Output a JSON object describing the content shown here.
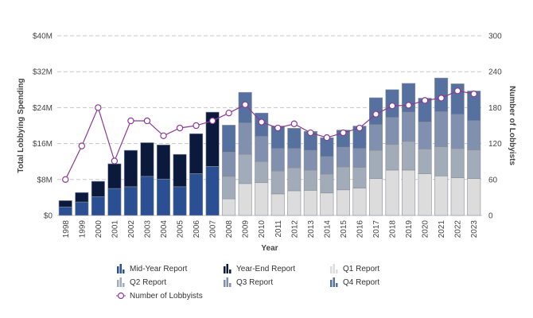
{
  "chart_data": {
    "type": "bar",
    "stacked": true,
    "categories": [
      "1998",
      "1999",
      "2000",
      "2001",
      "2002",
      "2003",
      "2004",
      "2005",
      "2006",
      "2007",
      "2008",
      "2009",
      "2010",
      "2011",
      "2012",
      "2013",
      "2014",
      "2015",
      "2016",
      "2017",
      "2018",
      "2019",
      "2020",
      "2021",
      "2022",
      "2023"
    ],
    "series": [
      {
        "name": "Mid-Year Report",
        "color": "#2b4f93",
        "axis": "left",
        "values": [
          1.9,
          3.0,
          4.2,
          6.0,
          6.4,
          8.7,
          8.1,
          6.4,
          9.3,
          10.9,
          null,
          null,
          null,
          null,
          null,
          null,
          null,
          null,
          null,
          null,
          null,
          null,
          null,
          null,
          null,
          null
        ]
      },
      {
        "name": "Year-End Report",
        "color": "#0b1a3c",
        "axis": "left",
        "values": [
          1.4,
          2.1,
          3.4,
          5.5,
          8.1,
          7.5,
          7.6,
          7.2,
          8.9,
          12.1,
          null,
          null,
          null,
          null,
          null,
          null,
          null,
          null,
          null,
          null,
          null,
          null,
          null,
          null,
          null,
          null
        ]
      },
      {
        "name": "Q1 Report",
        "color": "#dcdcdc",
        "axis": "left",
        "values": [
          null,
          null,
          null,
          null,
          null,
          null,
          null,
          null,
          null,
          null,
          3.7,
          7.1,
          7.3,
          4.8,
          5.5,
          5.6,
          5.0,
          5.7,
          6.1,
          8.2,
          10.1,
          10.1,
          9.3,
          8.8,
          8.4,
          8.2
        ]
      },
      {
        "name": "Q2 Report",
        "color": "#a2abb8",
        "axis": "left",
        "values": [
          null,
          null,
          null,
          null,
          null,
          null,
          null,
          null,
          null,
          null,
          5.0,
          6.5,
          4.7,
          5.1,
          5.1,
          4.5,
          4.2,
          5.1,
          4.6,
          6.3,
          5.7,
          6.4,
          5.5,
          6.5,
          6.5,
          6.4
        ]
      },
      {
        "name": "Q3 Report",
        "color": "#8190ae",
        "axis": "left",
        "values": [
          null,
          null,
          null,
          null,
          null,
          null,
          null,
          null,
          null,
          null,
          5.4,
          7.0,
          5.6,
          5.0,
          4.3,
          4.4,
          3.9,
          4.4,
          4.2,
          5.7,
          6.0,
          6.5,
          6.0,
          7.8,
          7.6,
          6.5
        ]
      },
      {
        "name": "Q4 Report",
        "color": "#5670a0",
        "axis": "left",
        "values": [
          null,
          null,
          null,
          null,
          null,
          null,
          null,
          null,
          null,
          null,
          6.0,
          6.8,
          5.2,
          5.0,
          4.5,
          4.2,
          4.2,
          3.8,
          5.0,
          6.0,
          6.2,
          6.4,
          5.3,
          7.5,
          6.8,
          6.6
        ]
      },
      {
        "name": "Number of Lobbyists",
        "type": "line",
        "color": "#8b3a96",
        "axis": "right",
        "values": [
          60,
          116,
          180,
          91,
          158,
          158,
          133,
          146,
          150,
          158,
          171,
          185,
          156,
          146,
          153,
          138,
          130,
          138,
          146,
          169,
          183,
          184,
          192,
          196,
          208,
          203
        ]
      }
    ],
    "xlabel": "Year",
    "ylabel": "Total Lobbying Spending",
    "y2label": "Number of Lobbyists",
    "ylim": [
      0,
      40
    ],
    "y2lim": [
      0,
      300
    ],
    "yticks": [
      0,
      8,
      16,
      24,
      32,
      40
    ],
    "ytick_labels": [
      "$0",
      "$8M",
      "$16M",
      "$24M",
      "$32M",
      "$40M"
    ],
    "y2ticks": [
      0,
      60,
      120,
      180,
      240,
      300
    ],
    "y2tick_labels": [
      "0",
      "60",
      "120",
      "180",
      "240",
      "300"
    ],
    "grid": true,
    "legend_position": "bottom"
  }
}
